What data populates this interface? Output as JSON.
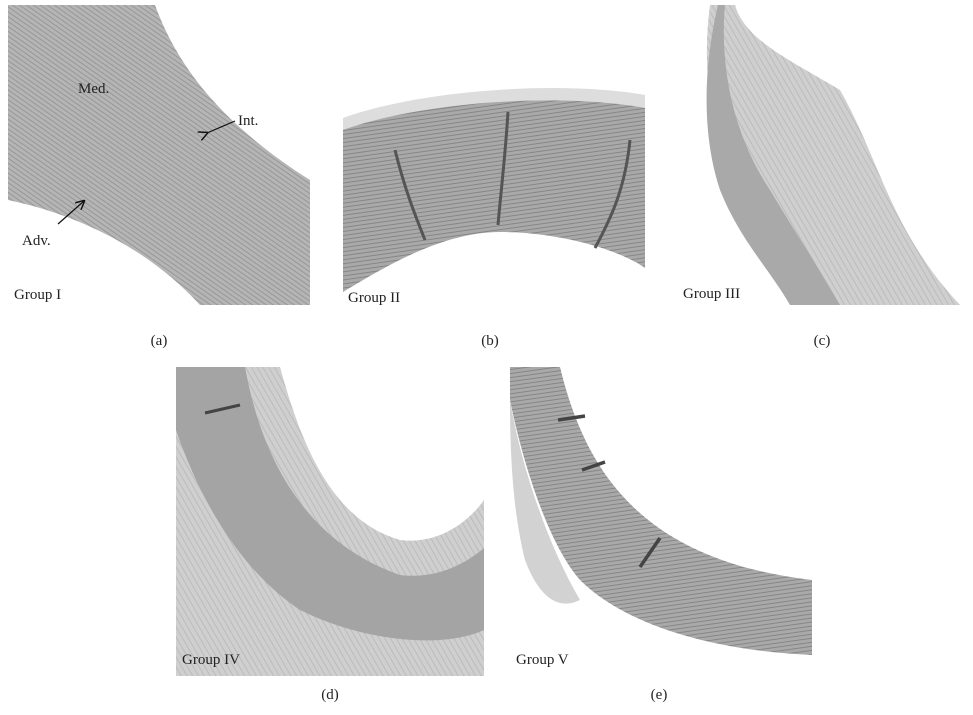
{
  "panels": [
    {
      "caption": "(a)",
      "group": "Group I",
      "annotations": [
        "Med.",
        "Int.",
        "Adv."
      ]
    },
    {
      "caption": "(b)",
      "group": "Group II"
    },
    {
      "caption": "(c)",
      "group": "Group III"
    },
    {
      "caption": "(d)",
      "group": "Group IV"
    },
    {
      "caption": "(e)",
      "group": "Group V"
    }
  ]
}
